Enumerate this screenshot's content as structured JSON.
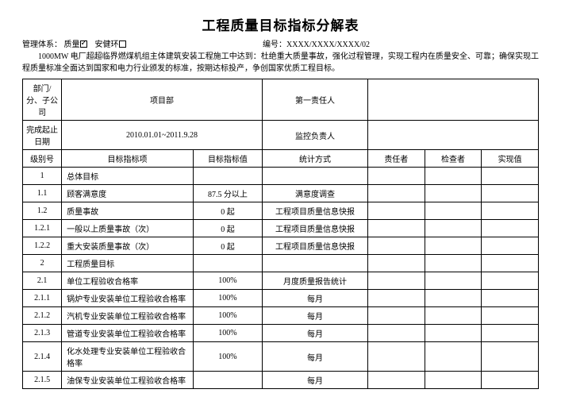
{
  "title": "工程质量目标指标分解表",
  "meta": {
    "mgmt_label": "管理体系：",
    "opt_quality": "质量",
    "opt_safety": "安健环",
    "code_label": "编号：",
    "code_value": "XXXX/XXXX/XXXX/02"
  },
  "intro": "1000MW 电厂超超临界燃煤机组主体建筑安装工程施工中达到：杜绝重大质量事故，强化过程管理，实现工程内在质量安全、可靠；确保实现工程质量标准全面达到国家和电力行业颁发的标准，按期达标投产，争创国家优质工程目标。",
  "head": {
    "r1c1": "部门/分、子公司",
    "r1c2": "项目部",
    "r1c3": "第一责任人",
    "r2c1": "完成起止日期",
    "r2c2": "2010.01.01~2011.9.28",
    "r2c3": "监控负责人",
    "hdr_level": "级别号",
    "hdr_item": "目标指标项",
    "hdr_val": "目标指标值",
    "hdr_stat": "统计方式",
    "hdr_resp": "责任者",
    "hdr_chk": "检查者",
    "hdr_real": "实现值"
  },
  "rows": [
    {
      "lv": "1",
      "item": "总体目标",
      "val": "",
      "stat": ""
    },
    {
      "lv": "1.1",
      "item": "顾客满意度",
      "val": "87.5 分以上",
      "stat": "满意度调查"
    },
    {
      "lv": "1.2",
      "item": "质量事故",
      "val": "0 起",
      "stat": "工程项目质量信息快报"
    },
    {
      "lv": "1.2.1",
      "item": "一般以上质量事故（次）",
      "val": "0 起",
      "stat": "工程项目质量信息快报"
    },
    {
      "lv": "1.2.2",
      "item": "重大安装质量事故（次）",
      "val": "0 起",
      "stat": "工程项目质量信息快报"
    },
    {
      "lv": "2",
      "item": "工程质量目标",
      "val": "",
      "stat": ""
    },
    {
      "lv": "2.1",
      "item": "单位工程验收合格率",
      "val": "100%",
      "stat": "月度质量报告统计"
    },
    {
      "lv": "2.1.1",
      "item": "锅炉专业安装单位工程验收合格率",
      "val": "100%",
      "stat": "每月"
    },
    {
      "lv": "2.1.2",
      "item": "汽机专业安装单位工程验收合格率",
      "val": "100%",
      "stat": "每月"
    },
    {
      "lv": "2.1.3",
      "item": "管道专业安装单位工程验收合格率",
      "val": "100%",
      "stat": "每月"
    },
    {
      "lv": "2.1.4",
      "item": "化水处理专业安装单位工程验收合格率",
      "val": "100%",
      "stat": "每月"
    },
    {
      "lv": "2.1.5",
      "item": "油保专业安装单位工程验收合格率",
      "val": "",
      "stat": "每月"
    }
  ]
}
